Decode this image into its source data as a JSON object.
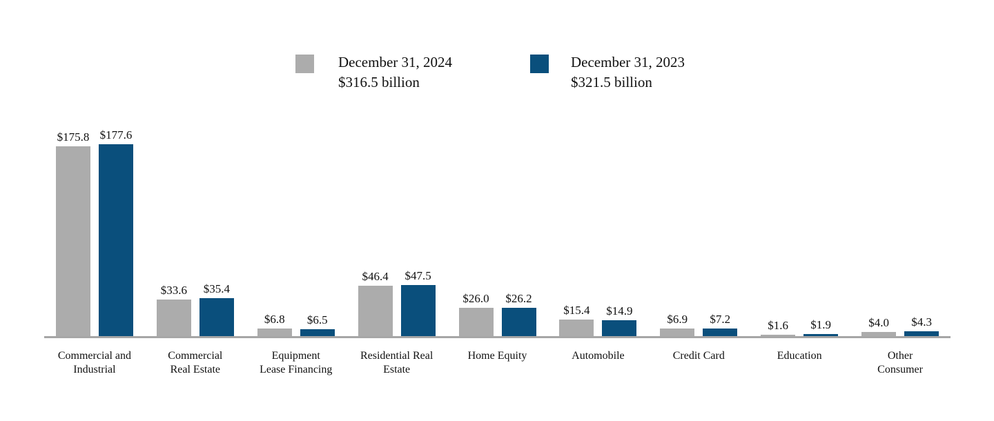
{
  "legend": {
    "items": [
      {
        "label": "December 31, 2024",
        "sublabel": "$316.5 billion",
        "color": "#acacac"
      },
      {
        "label": "December 31, 2023",
        "sublabel": "$321.5 billion",
        "color": "#0a4f7c"
      }
    ]
  },
  "chart_data": {
    "type": "bar",
    "title": "",
    "xlabel": "",
    "ylabel": "",
    "unit_note": "billion",
    "ylim": [
      0,
      190
    ],
    "grid": false,
    "legend_position": "top-center",
    "axis_line_color": "#a6a6a6",
    "categories": [
      "Commercial and\nIndustrial",
      "Commercial\nReal Estate",
      "Equipment\nLease Financing",
      "Residential Real\nEstate",
      "Home Equity",
      "Automobile",
      "Credit Card",
      "Education",
      "Other\nConsumer"
    ],
    "series": [
      {
        "name": "December 31, 2024",
        "total_label": "$316.5 billion",
        "color": "#acacac",
        "values": [
          175.8,
          33.6,
          6.8,
          46.4,
          26.0,
          15.4,
          6.9,
          1.6,
          4.0
        ],
        "labels": [
          "$175.8",
          "$33.6",
          "$6.8",
          "$46.4",
          "$26.0",
          "$15.4",
          "$6.9",
          "$1.6",
          "$4.0"
        ]
      },
      {
        "name": "December 31, 2023",
        "total_label": "$321.5 billion",
        "color": "#0a4f7c",
        "values": [
          177.6,
          35.4,
          6.5,
          47.5,
          26.2,
          14.9,
          7.2,
          1.9,
          4.3
        ],
        "labels": [
          "$177.6",
          "$35.4",
          "$6.5",
          "$47.5",
          "$26.2",
          "$14.9",
          "$7.2",
          "$1.9",
          "$4.3"
        ]
      }
    ]
  }
}
